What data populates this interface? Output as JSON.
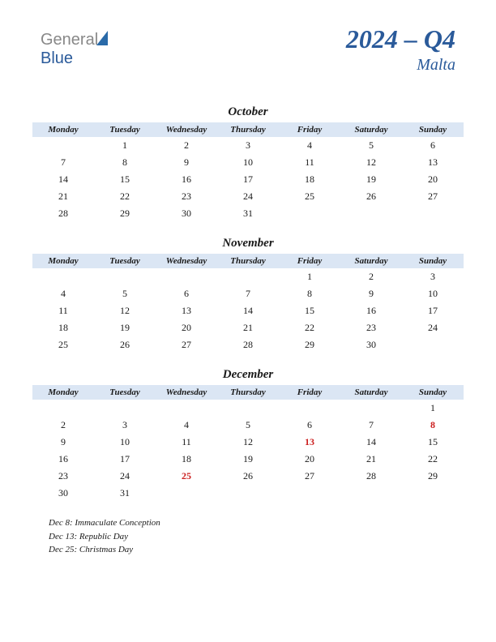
{
  "logo": {
    "part1": "General",
    "part2": "Blue"
  },
  "header": {
    "title": "2024 – Q4",
    "country": "Malta"
  },
  "style": {
    "header_bg": "#dbe6f4",
    "accent_color": "#2a5a9a",
    "holiday_color": "#cc2020",
    "text_color": "#1a1a1a",
    "bg_color": "#ffffff",
    "title_fontsize": 32,
    "country_fontsize": 20,
    "month_fontsize": 15,
    "day_header_fontsize": 11,
    "cell_fontsize": 12
  },
  "day_headers": [
    "Monday",
    "Tuesday",
    "Wednesday",
    "Thursday",
    "Friday",
    "Saturday",
    "Sunday"
  ],
  "months": [
    {
      "name": "October",
      "weeks": [
        [
          "",
          "1",
          "2",
          "3",
          "4",
          "5",
          "6"
        ],
        [
          "7",
          "8",
          "9",
          "10",
          "11",
          "12",
          "13"
        ],
        [
          "14",
          "15",
          "16",
          "17",
          "18",
          "19",
          "20"
        ],
        [
          "21",
          "22",
          "23",
          "24",
          "25",
          "26",
          "27"
        ],
        [
          "28",
          "29",
          "30",
          "31",
          "",
          "",
          ""
        ]
      ],
      "holidays_cells": []
    },
    {
      "name": "November",
      "weeks": [
        [
          "",
          "",
          "",
          "",
          "1",
          "2",
          "3"
        ],
        [
          "4",
          "5",
          "6",
          "7",
          "8",
          "9",
          "10"
        ],
        [
          "11",
          "12",
          "13",
          "14",
          "15",
          "16",
          "17"
        ],
        [
          "18",
          "19",
          "20",
          "21",
          "22",
          "23",
          "24"
        ],
        [
          "25",
          "26",
          "27",
          "28",
          "29",
          "30",
          ""
        ]
      ],
      "holidays_cells": []
    },
    {
      "name": "December",
      "weeks": [
        [
          "",
          "",
          "",
          "",
          "",
          "",
          "1"
        ],
        [
          "2",
          "3",
          "4",
          "5",
          "6",
          "7",
          "8"
        ],
        [
          "9",
          "10",
          "11",
          "12",
          "13",
          "14",
          "15"
        ],
        [
          "16",
          "17",
          "18",
          "19",
          "20",
          "21",
          "22"
        ],
        [
          "23",
          "24",
          "25",
          "26",
          "27",
          "28",
          "29"
        ],
        [
          "30",
          "31",
          "",
          "",
          "",
          "",
          ""
        ]
      ],
      "holidays_cells": [
        "8",
        "13",
        "25"
      ]
    }
  ],
  "holiday_list": [
    "Dec 8: Immaculate Conception",
    "Dec 13: Republic Day",
    "Dec 25: Christmas Day"
  ]
}
